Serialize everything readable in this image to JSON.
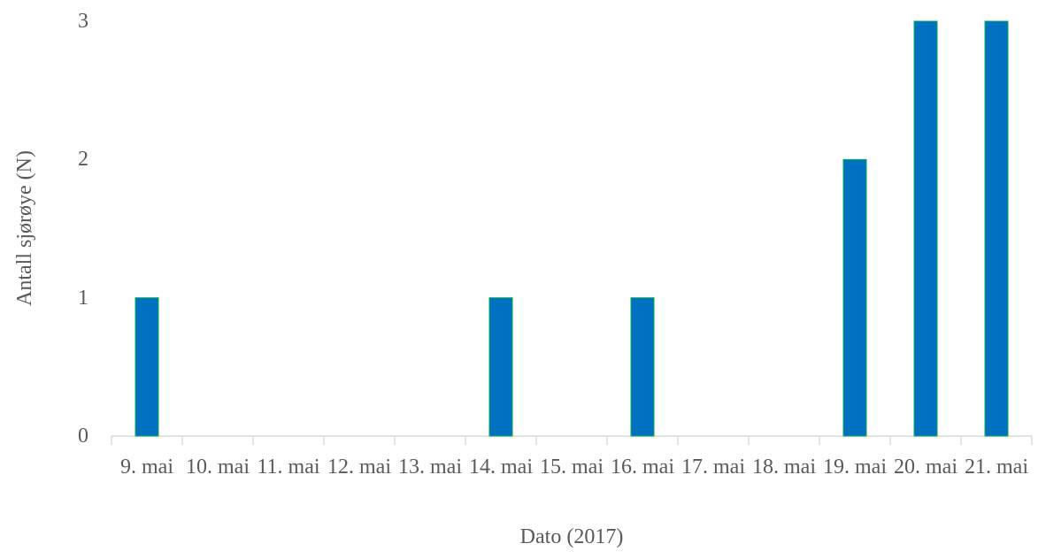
{
  "chart_data": {
    "type": "bar",
    "categories": [
      "9. mai",
      "10. mai",
      "11. mai",
      "12. mai",
      "13. mai",
      "14. mai",
      "15. mai",
      "16. mai",
      "17. mai",
      "18. mai",
      "19. mai",
      "20. mai",
      "21. mai"
    ],
    "values": [
      1,
      0,
      0,
      0,
      0,
      1,
      0,
      1,
      0,
      0,
      2,
      3,
      3
    ],
    "color": "#0070c0",
    "xlabel": "Dato (2017)",
    "ylabel": "Antall sjørøye (N)",
    "ylim": [
      0,
      3
    ],
    "yticks": [
      0,
      1,
      2,
      3
    ],
    "grid": false
  }
}
